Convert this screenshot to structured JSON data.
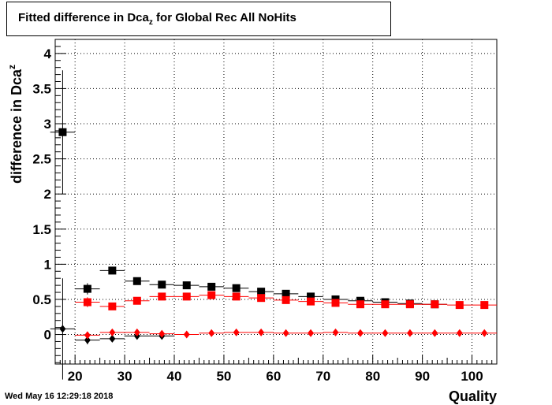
{
  "title": {
    "prefix": "Fitted difference in Dca",
    "sub": "z",
    "suffix": " for Global Rec All NoHits"
  },
  "timestamp": "Wed May 16 12:29:18 2018",
  "chart_data": {
    "type": "scatter",
    "xlabel": "Quality",
    "ylabel": "difference in Dca",
    "ylabel_sub": "z",
    "xlim": [
      16,
      105
    ],
    "ylim": [
      -0.42,
      4.2
    ],
    "x_ticks": [
      20,
      30,
      40,
      50,
      60,
      70,
      80,
      90,
      100
    ],
    "y_ticks": [
      0,
      0.5,
      1,
      1.5,
      2,
      2.5,
      3,
      3.5,
      4
    ],
    "y_tick_labels": [
      "0",
      "0.5",
      "1",
      "1.5",
      "2",
      "2.5",
      "3",
      "3.5",
      "4"
    ],
    "grid": true,
    "series": [
      {
        "color": "#000000",
        "marker": "square",
        "x": [
          17.5,
          22.5,
          27.5,
          32.5,
          37.5,
          42.5,
          47.5,
          52.5,
          57.5,
          62.5,
          67.5,
          72.5,
          77.5,
          82.5,
          87.5,
          92.5
        ],
        "y": [
          2.88,
          0.65,
          0.91,
          0.76,
          0.71,
          0.7,
          0.68,
          0.66,
          0.61,
          0.58,
          0.54,
          0.5,
          0.48,
          0.46,
          0.44,
          0.43
        ],
        "yerr": [
          0.88,
          0.08,
          0.04,
          0.03,
          0.02,
          0.02,
          0.02,
          0.02,
          0.02,
          0.02,
          0.02,
          0.02,
          0.02,
          0.02,
          0.02,
          0.02
        ]
      },
      {
        "color": "#ff0000",
        "marker": "square",
        "x": [
          22.5,
          27.5,
          32.5,
          37.5,
          42.5,
          47.5,
          52.5,
          57.5,
          62.5,
          67.5,
          72.5,
          77.5,
          82.5,
          87.5,
          92.5,
          97.5,
          102.5
        ],
        "y": [
          0.46,
          0.4,
          0.48,
          0.54,
          0.54,
          0.56,
          0.54,
          0.52,
          0.49,
          0.47,
          0.45,
          0.43,
          0.43,
          0.43,
          0.43,
          0.42,
          0.42
        ],
        "yerr": [
          0.07,
          0.05,
          0.03,
          0.02,
          0.02,
          0.02,
          0.02,
          0.02,
          0.02,
          0.02,
          0.02,
          0.02,
          0.02,
          0.02,
          0.02,
          0.02,
          0.02
        ]
      },
      {
        "color": "#000000",
        "marker": "diamond",
        "x": [
          17.5,
          22.5,
          27.5,
          32.5,
          37.5
        ],
        "y": [
          0.08,
          -0.08,
          -0.06,
          -0.02,
          -0.02
        ],
        "yerr": [
          0.72,
          0.06,
          0.03,
          0.02,
          0.02
        ]
      },
      {
        "color": "#ff0000",
        "marker": "diamond",
        "x": [
          22.5,
          27.5,
          32.5,
          37.5,
          42.5,
          47.5,
          52.5,
          57.5,
          62.5,
          67.5,
          72.5,
          77.5,
          82.5,
          87.5,
          92.5,
          97.5,
          102.5
        ],
        "y": [
          -0.01,
          0.03,
          0.03,
          0.01,
          0.0,
          0.02,
          0.03,
          0.03,
          0.02,
          0.02,
          0.03,
          0.02,
          0.02,
          0.02,
          0.02,
          0.02,
          0.02
        ],
        "yerr": [
          0.05,
          0.03,
          0.02,
          0.02,
          0.02,
          0.02,
          0.02,
          0.02,
          0.02,
          0.02,
          0.02,
          0.02,
          0.02,
          0.02,
          0.02,
          0.02,
          0.02
        ]
      }
    ]
  }
}
